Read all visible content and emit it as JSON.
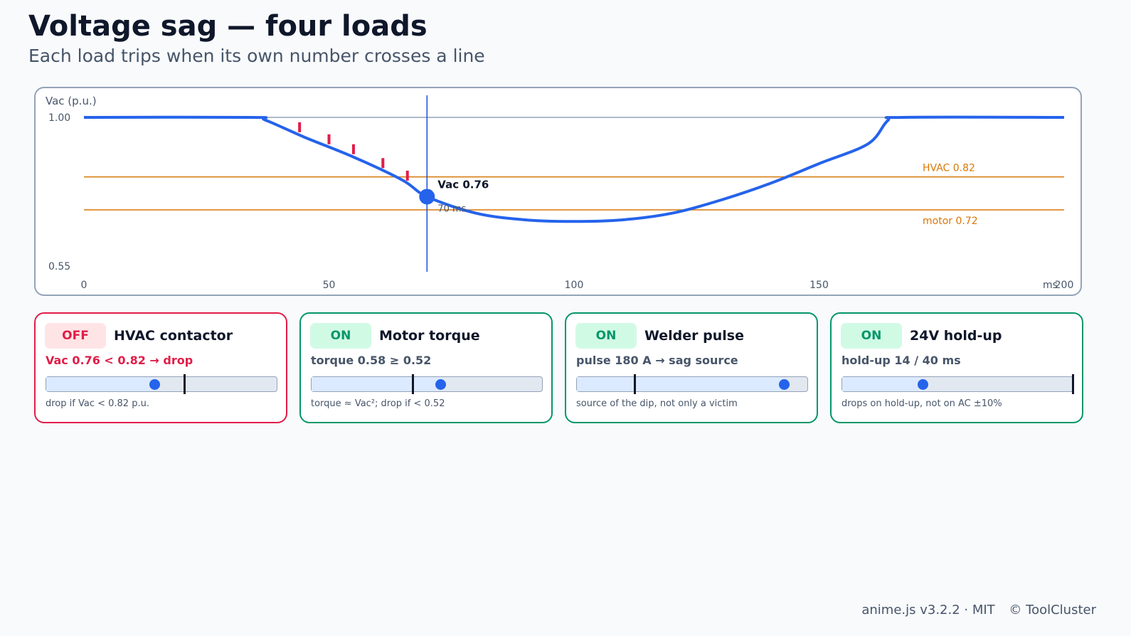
{
  "header": {
    "title": "Voltage sag — four loads",
    "subtitle": "Each load trips when its own number crosses a line"
  },
  "chart_data": {
    "type": "line",
    "ylabel": "Vac (p.u.)",
    "xlabel": "ms",
    "xlim": [
      0,
      200
    ],
    "ylim": [
      0.55,
      1.0
    ],
    "y_tick_labels": [
      "1.00",
      "0.55"
    ],
    "x_tick_labels": [
      "0",
      "50",
      "100",
      "150",
      "200"
    ],
    "series": [
      {
        "values_x": [
          0,
          34,
          37,
          45,
          55,
          65,
          70,
          80,
          90,
          100,
          110,
          120,
          130,
          140,
          150,
          160,
          164,
          167,
          200
        ],
        "values_y": [
          1.0,
          1.0,
          0.992,
          0.94,
          0.88,
          0.81,
          0.76,
          0.71,
          0.69,
          0.685,
          0.69,
          0.71,
          0.75,
          0.8,
          0.86,
          0.92,
          0.99,
          1.0,
          1.0
        ]
      }
    ],
    "threshold_lines": [
      {
        "label": "HVAC 0.82",
        "value": 0.82
      },
      {
        "label": "motor 0.72",
        "value": 0.72
      }
    ],
    "spikes_x": [
      44,
      50,
      55,
      61,
      66
    ],
    "cursor": {
      "x": 70,
      "y": 0.76,
      "value_label": "Vac 0.76",
      "time_label": "70 ms"
    },
    "grid": false,
    "colors": {
      "series": "#2563eb",
      "threshold": "#d97706",
      "spike": "#e11d48",
      "cursor": "#1d4ed8",
      "reference": "#94a3b8"
    }
  },
  "loads": [
    {
      "status": "OFF",
      "title": "HVAC contactor",
      "readout": "Vac 0.76 < 0.82 → drop",
      "note": "drop if Vac < 0.82 p.u.",
      "level": 0.47,
      "threshold": 0.6
    },
    {
      "status": "ON",
      "title": "Motor torque",
      "readout": "torque 0.58 ≥ 0.52",
      "note": "torque ≈ Vac²; drop if < 0.52",
      "level": 0.56,
      "threshold": 0.44
    },
    {
      "status": "ON",
      "title": "Welder pulse",
      "readout": "pulse 180 A → sag source",
      "note": "source of the dip, not only a victim",
      "level": 0.9,
      "threshold": 0.25
    },
    {
      "status": "ON",
      "title": "24V hold-up",
      "readout": "hold-up 14 / 40 ms",
      "note": "drops on hold-up, not on AC ±10%",
      "level": 0.35,
      "threshold": 1.0
    }
  ],
  "footer": {
    "library": "anime.js v3.2.2 · MIT",
    "copyright": "© ToolCluster"
  }
}
